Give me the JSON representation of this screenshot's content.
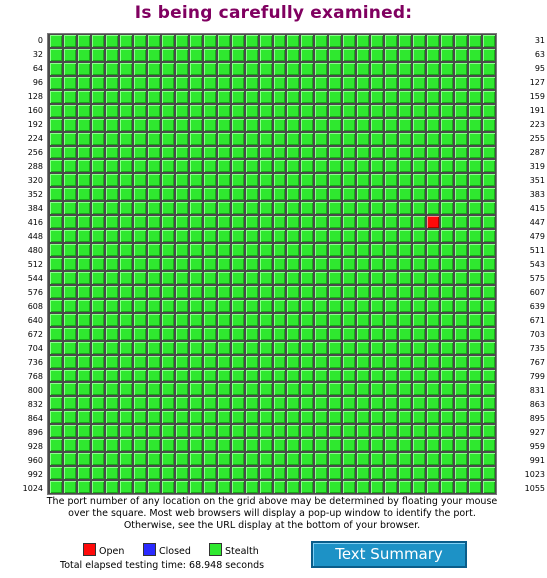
{
  "title": "Is being carefully examined:",
  "grid": {
    "left_labels": [
      "0",
      "32",
      "64",
      "96",
      "128",
      "160",
      "192",
      "224",
      "256",
      "288",
      "320",
      "352",
      "384",
      "416",
      "448",
      "480",
      "512",
      "544",
      "576",
      "608",
      "640",
      "672",
      "704",
      "736",
      "768",
      "800",
      "832",
      "864",
      "896",
      "928",
      "960",
      "992",
      "1024"
    ],
    "right_labels": [
      "31",
      "63",
      "95",
      "127",
      "159",
      "191",
      "223",
      "255",
      "287",
      "319",
      "351",
      "383",
      "415",
      "447",
      "479",
      "511",
      "543",
      "575",
      "607",
      "639",
      "671",
      "703",
      "735",
      "767",
      "799",
      "831",
      "863",
      "895",
      "927",
      "959",
      "991",
      "1023",
      "1055"
    ],
    "columns": 32,
    "rows": 33,
    "open_ports": [
      443
    ],
    "closed_ports": []
  },
  "note": "The port number of any location on the grid above may be determined by floating your mouse over the square. Most web browsers will display a pop-up window to identify the port. Otherwise, see the URL display at the bottom of your browser.",
  "legend": {
    "open_label": "Open",
    "closed_label": "Closed",
    "stealth_label": "Stealth",
    "open_color": "#ff0a0a",
    "closed_color": "#2a2aff",
    "stealth_color": "#2fe82f"
  },
  "elapsed": "Total elapsed testing time: 68.948 seconds",
  "summary_button": "Text Summary"
}
